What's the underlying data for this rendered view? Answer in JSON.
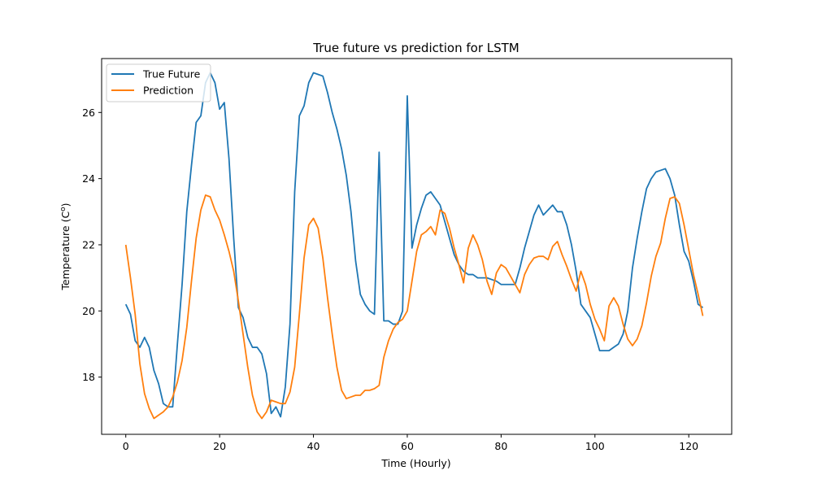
{
  "chart_data": {
    "type": "line",
    "title": "True future vs prediction for LSTM",
    "xlabel": "Time (Hourly)",
    "ylabel": "Temperature (C",
    "ylabel_sup": "o",
    "ylabel_close": ")",
    "xlim": [
      -5.15,
      129.15
    ],
    "ylim": [
      16.27,
      27.63
    ],
    "xticks": [
      0,
      20,
      40,
      60,
      80,
      100,
      120
    ],
    "yticks": [
      18,
      20,
      22,
      24,
      26
    ],
    "grid": false,
    "legend_position": "top-left",
    "series": [
      {
        "name": "True Future",
        "color": "#1f77b4",
        "values": [
          20.2,
          19.9,
          19.1,
          18.9,
          19.2,
          18.9,
          18.2,
          17.8,
          17.2,
          17.1,
          17.1,
          19.0,
          20.8,
          23.0,
          24.4,
          25.7,
          25.9,
          26.9,
          27.2,
          26.9,
          26.1,
          26.3,
          24.6,
          22.2,
          20.1,
          19.8,
          19.2,
          18.9,
          18.9,
          18.7,
          18.1,
          16.9,
          17.1,
          16.8,
          17.7,
          19.6,
          23.6,
          25.9,
          26.2,
          26.9,
          27.2,
          27.15,
          27.1,
          26.6,
          26.0,
          25.5,
          24.9,
          24.1,
          23.0,
          21.5,
          20.5,
          20.2,
          20.0,
          19.9,
          24.8,
          19.7,
          19.7,
          19.6,
          19.6,
          20.0,
          26.5,
          21.9,
          22.6,
          23.1,
          23.5,
          23.6,
          23.4,
          23.2,
          22.7,
          22.2,
          21.7,
          21.4,
          21.2,
          21.1,
          21.1,
          21.0,
          21.0,
          21.0,
          20.95,
          20.9,
          20.8,
          20.8,
          20.8,
          20.8,
          21.3,
          21.9,
          22.4,
          22.9,
          23.2,
          22.9,
          23.05,
          23.2,
          23.0,
          23.0,
          22.6,
          22.0,
          21.2,
          20.2,
          20.0,
          19.8,
          19.3,
          18.8,
          18.8,
          18.8,
          18.9,
          19.0,
          19.3,
          20.0,
          21.3,
          22.2,
          23.0,
          23.7,
          24.0,
          24.2,
          24.25,
          24.3,
          24.0,
          23.5,
          22.6,
          21.8,
          21.5,
          20.9,
          20.2,
          20.1
        ],
        "_unused": null
      },
      {
        "name": "Prediction",
        "color": "#ff7f0e",
        "values": [
          22.0,
          21.0,
          19.9,
          18.4,
          17.5,
          17.05,
          16.75,
          16.85,
          16.95,
          17.1,
          17.4,
          17.85,
          18.5,
          19.5,
          20.9,
          22.2,
          23.05,
          23.5,
          23.45,
          23.05,
          22.75,
          22.3,
          21.8,
          21.2,
          20.3,
          19.3,
          18.3,
          17.45,
          16.95,
          16.75,
          16.95,
          17.3,
          17.25,
          17.2,
          17.2,
          17.55,
          18.3,
          19.9,
          21.6,
          22.6,
          22.8,
          22.5,
          21.6,
          20.4,
          19.3,
          18.3,
          17.6,
          17.35,
          17.4,
          17.45,
          17.45,
          17.6,
          17.6,
          17.65,
          17.75,
          18.6,
          19.1,
          19.45,
          19.65,
          19.75,
          20.0,
          20.9,
          21.8,
          22.3,
          22.4,
          22.55,
          22.3,
          23.05,
          22.95,
          22.5,
          21.9,
          21.4,
          20.85,
          21.9,
          22.3,
          22.0,
          21.55,
          20.9,
          20.5,
          21.15,
          21.4,
          21.3,
          21.05,
          20.8,
          20.55,
          21.1,
          21.4,
          21.6,
          21.65,
          21.65,
          21.55,
          21.95,
          22.1,
          21.7,
          21.35,
          20.95,
          20.6,
          21.2,
          20.8,
          20.2,
          19.75,
          19.45,
          19.1,
          20.15,
          20.4,
          20.15,
          19.6,
          19.15,
          18.95,
          19.15,
          19.55,
          20.25,
          21.05,
          21.65,
          22.05,
          22.8,
          23.4,
          23.45,
          23.25,
          22.6,
          21.85,
          21.1,
          20.5,
          19.85
        ],
        "_unused": null
      }
    ]
  }
}
